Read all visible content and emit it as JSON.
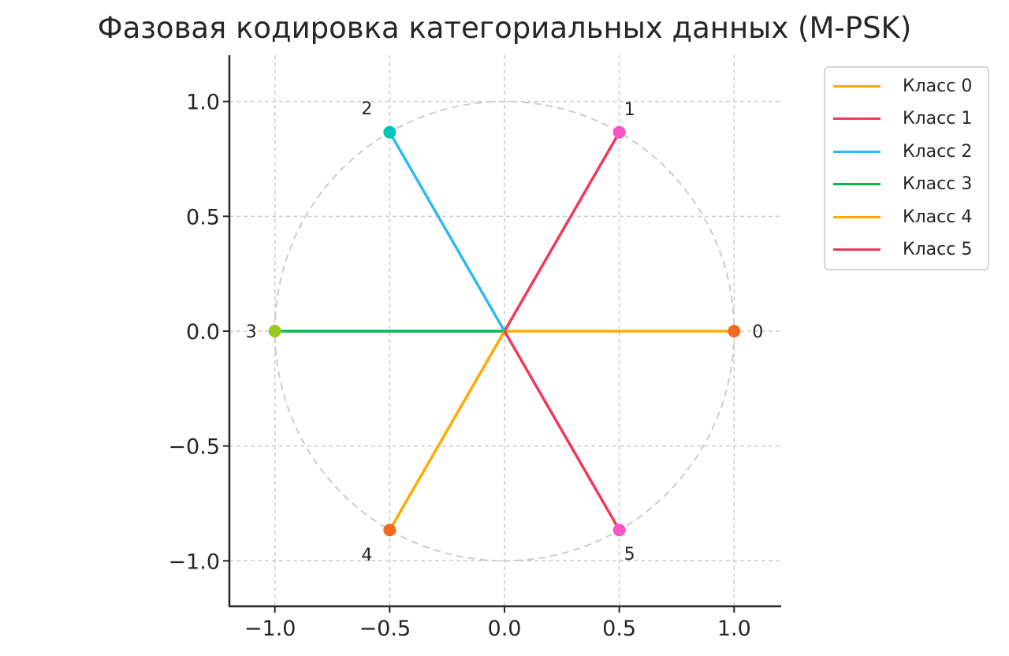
{
  "chart_data": {
    "type": "line",
    "title": "Фазовая кодировка категориальных данных (M-PSK)",
    "xlabel": "",
    "ylabel": "",
    "xlim": [
      -1.2,
      1.2
    ],
    "ylim": [
      -1.2,
      1.2
    ],
    "grid": true,
    "legend_position": "outside upper right",
    "x_ticks": [
      "−1.0",
      "−0.5",
      "0.0",
      "0.5",
      "1.0"
    ],
    "y_ticks": [
      "1.0",
      "0.5",
      "0.0",
      "−0.5",
      "−1.0"
    ],
    "unit_circle": {
      "radius": 1.0,
      "style": "dashed",
      "color": "#cccccc"
    },
    "series": [
      {
        "name": "Класс 0",
        "label": "0",
        "angle_deg": 0,
        "x": [
          0,
          1.0
        ],
        "y": [
          0,
          0.0
        ],
        "line_color": "#FFAA00",
        "marker_color": "#F26B21"
      },
      {
        "name": "Класс 1",
        "label": "1",
        "angle_deg": 60,
        "x": [
          0,
          0.5
        ],
        "y": [
          0,
          0.866
        ],
        "line_color": "#F2385A",
        "marker_color": "#F755C6"
      },
      {
        "name": "Класс 2",
        "label": "2",
        "angle_deg": 120,
        "x": [
          0,
          -0.5
        ],
        "y": [
          0,
          0.866
        ],
        "line_color": "#2BBBF2",
        "marker_color": "#00C8B8"
      },
      {
        "name": "Класс 3",
        "label": "3",
        "angle_deg": 180,
        "x": [
          0,
          -1.0
        ],
        "y": [
          0,
          0.0
        ],
        "line_color": "#00B850",
        "marker_color": "#9BC81E"
      },
      {
        "name": "Класс 4",
        "label": "4",
        "angle_deg": 240,
        "x": [
          0,
          -0.5
        ],
        "y": [
          0,
          -0.866
        ],
        "line_color": "#FFAA00",
        "marker_color": "#F26B21"
      },
      {
        "name": "Класс 5",
        "label": "5",
        "angle_deg": 300,
        "x": [
          0,
          0.5
        ],
        "y": [
          0,
          -0.866
        ],
        "line_color": "#F2385A",
        "marker_color": "#F755C6"
      }
    ]
  }
}
